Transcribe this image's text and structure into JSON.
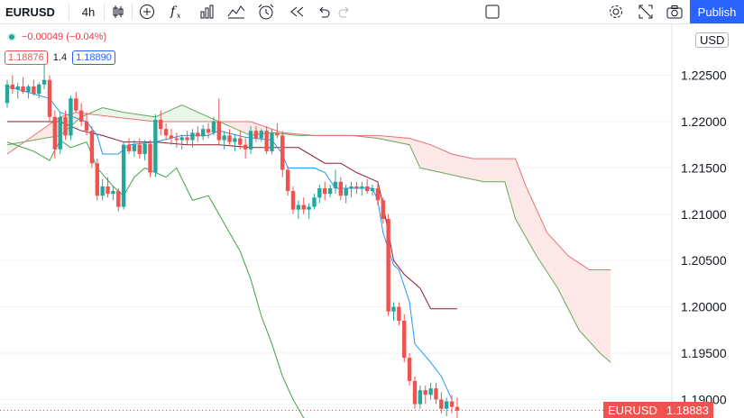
{
  "toolbar": {
    "symbol": "EURUSD",
    "interval": "4h",
    "publish": "Publish",
    "icons": [
      "candles-icon",
      "add-indicator-icon",
      "fx-indicators-icon",
      "bar-chart-icon",
      "compare-icon",
      "alert-icon",
      "replay-icon",
      "undo-icon",
      "redo-icon",
      "layout-icon",
      "settings-icon",
      "fullscreen-icon",
      "camera-icon"
    ]
  },
  "legend": {
    "change": "−0.00049 (−0.04%)",
    "ichimoku_a": "1.18876",
    "ichimoku_mid": "1.4",
    "ichimoku_b": "1.18890"
  },
  "axis": {
    "currency": "USD",
    "last_symbol": "EURUSD",
    "last_price": "1.18883"
  },
  "colors": {
    "up": "#26a69a",
    "down": "#ef5350",
    "tenkan": "#2196f3",
    "kijun": "#8b1e2d",
    "chikou": "#43a047",
    "span_a": "#66a85a",
    "span_b": "#e57373",
    "cloud_bear": "#fde7e7",
    "cloud_bull": "#e8f5e9"
  },
  "chart_data": {
    "type": "line",
    "yticks": [
      1.19,
      1.195,
      1.2,
      1.205,
      1.21,
      1.215,
      1.22,
      1.225
    ],
    "ytick_labels": [
      "1.19000",
      "1.19500",
      "1.20000",
      "1.20500",
      "1.21000",
      "1.21500",
      "1.22000",
      "1.22500"
    ],
    "ylim": [
      1.188,
      1.2305
    ],
    "candles": [
      [
        1.222,
        1.2245,
        1.2215,
        1.224
      ],
      [
        1.224,
        1.225,
        1.223,
        1.2235
      ],
      [
        1.2235,
        1.2242,
        1.2225,
        1.2238
      ],
      [
        1.2238,
        1.2248,
        1.223,
        1.2232
      ],
      [
        1.2232,
        1.224,
        1.2225,
        1.2238
      ],
      [
        1.2238,
        1.2245,
        1.2228,
        1.223
      ],
      [
        1.223,
        1.2242,
        1.2225,
        1.224
      ],
      [
        1.224,
        1.2262,
        1.2235,
        1.2245
      ],
      [
        1.2245,
        1.225,
        1.22,
        1.2205
      ],
      [
        1.2205,
        1.2212,
        1.216,
        1.217
      ],
      [
        1.217,
        1.221,
        1.2165,
        1.2205
      ],
      [
        1.2205,
        1.2212,
        1.218,
        1.2185
      ],
      [
        1.2185,
        1.2228,
        1.218,
        1.2225
      ],
      [
        1.2225,
        1.2232,
        1.221,
        1.2212
      ],
      [
        1.2212,
        1.222,
        1.2195,
        1.22
      ],
      [
        1.22,
        1.221,
        1.2185,
        1.219
      ],
      [
        1.219,
        1.2195,
        1.215,
        1.2155
      ],
      [
        1.2155,
        1.216,
        1.2115,
        1.212
      ],
      [
        1.212,
        1.2138,
        1.2115,
        1.213
      ],
      [
        1.213,
        1.214,
        1.2118,
        1.2122
      ],
      [
        1.2122,
        1.213,
        1.2115,
        1.2125
      ],
      [
        1.2125,
        1.2128,
        1.2103,
        1.2108
      ],
      [
        1.2108,
        1.2178,
        1.2105,
        1.2175
      ],
      [
        1.2175,
        1.2182,
        1.2165,
        1.2168
      ],
      [
        1.2168,
        1.218,
        1.2162,
        1.2175
      ],
      [
        1.2175,
        1.2182,
        1.216,
        1.2165
      ],
      [
        1.2165,
        1.218,
        1.2158,
        1.2176
      ],
      [
        1.2176,
        1.218,
        1.214,
        1.2145
      ],
      [
        1.2145,
        1.2208,
        1.214,
        1.2202
      ],
      [
        1.2202,
        1.2212,
        1.2185,
        1.2192
      ],
      [
        1.2192,
        1.2198,
        1.218,
        1.2185
      ],
      [
        1.2185,
        1.2192,
        1.2175,
        1.2182
      ],
      [
        1.2182,
        1.2188,
        1.2172,
        1.218
      ],
      [
        1.218,
        1.2186,
        1.217,
        1.2183
      ],
      [
        1.2183,
        1.219,
        1.2175,
        1.218
      ],
      [
        1.218,
        1.2192,
        1.2172,
        1.2188
      ],
      [
        1.2188,
        1.2195,
        1.2178,
        1.2184
      ],
      [
        1.2184,
        1.2196,
        1.218,
        1.2192
      ],
      [
        1.2192,
        1.2198,
        1.2182,
        1.2188
      ],
      [
        1.2188,
        1.2205,
        1.2185,
        1.22
      ],
      [
        1.22,
        1.2225,
        1.2175,
        1.218
      ],
      [
        1.218,
        1.219,
        1.217,
        1.2185
      ],
      [
        1.2185,
        1.2192,
        1.2175,
        1.2178
      ],
      [
        1.2178,
        1.2186,
        1.2168,
        1.2182
      ],
      [
        1.2182,
        1.219,
        1.217,
        1.2175
      ],
      [
        1.2175,
        1.2182,
        1.216,
        1.217
      ],
      [
        1.217,
        1.2195,
        1.2165,
        1.219
      ],
      [
        1.219,
        1.2195,
        1.2178,
        1.2182
      ],
      [
        1.2182,
        1.2192,
        1.2178,
        1.219
      ],
      [
        1.219,
        1.2195,
        1.2165,
        1.2168
      ],
      [
        1.2168,
        1.2192,
        1.2165,
        1.2188
      ],
      [
        1.2188,
        1.2198,
        1.2182,
        1.2185
      ],
      [
        1.2185,
        1.219,
        1.214,
        1.2148
      ],
      [
        1.2148,
        1.2152,
        1.212,
        1.2125
      ],
      [
        1.2125,
        1.213,
        1.21,
        1.2105
      ],
      [
        1.2105,
        1.2115,
        1.2095,
        1.211
      ],
      [
        1.211,
        1.2118,
        1.21,
        1.2105
      ],
      [
        1.2105,
        1.2112,
        1.2095,
        1.2108
      ],
      [
        1.2108,
        1.2122,
        1.2105,
        1.2118
      ],
      [
        1.2118,
        1.2132,
        1.2112,
        1.2128
      ],
      [
        1.2128,
        1.2135,
        1.2115,
        1.2122
      ],
      [
        1.2122,
        1.2132,
        1.2118,
        1.2128
      ],
      [
        1.2128,
        1.2148,
        1.2122,
        1.2135
      ],
      [
        1.2135,
        1.214,
        1.2115,
        1.212
      ],
      [
        1.212,
        1.2132,
        1.2112,
        1.2128
      ],
      [
        1.2128,
        1.2135,
        1.2118,
        1.213
      ],
      [
        1.213,
        1.2135,
        1.2122,
        1.2128
      ],
      [
        1.2128,
        1.2135,
        1.212,
        1.213
      ],
      [
        1.213,
        1.2138,
        1.2122,
        1.2125
      ],
      [
        1.2125,
        1.2132,
        1.212,
        1.2128
      ],
      [
        1.2128,
        1.2132,
        1.211,
        1.2115
      ],
      [
        1.2115,
        1.2118,
        1.209,
        1.2095
      ],
      [
        1.2095,
        1.21,
        1.199,
        1.1995
      ],
      [
        1.1995,
        1.2005,
        1.1985,
        1.2
      ],
      [
        1.2,
        1.2005,
        1.198,
        1.1985
      ],
      [
        1.1985,
        1.1992,
        1.194,
        1.1945
      ],
      [
        1.1945,
        1.195,
        1.1915,
        1.192
      ],
      [
        1.192,
        1.1925,
        1.189,
        1.1895
      ],
      [
        1.1895,
        1.1915,
        1.189,
        1.191
      ],
      [
        1.191,
        1.1915,
        1.1895,
        1.1905
      ],
      [
        1.1905,
        1.1918,
        1.19,
        1.1912
      ],
      [
        1.1912,
        1.1918,
        1.1895,
        1.19
      ],
      [
        1.19,
        1.1908,
        1.1885,
        1.189
      ],
      [
        1.189,
        1.1902,
        1.1882,
        1.1898
      ],
      [
        1.1898,
        1.1905,
        1.1885,
        1.1892
      ],
      [
        1.1892,
        1.1902,
        1.188,
        1.1888
      ]
    ],
    "tenkan": [
      [
        0,
        1.2238
      ],
      [
        8,
        1.2225
      ],
      [
        10,
        1.221
      ],
      [
        15,
        1.22
      ],
      [
        17,
        1.2185
      ],
      [
        18,
        1.2165
      ],
      [
        21,
        1.2165
      ],
      [
        23,
        1.2175
      ],
      [
        28,
        1.2178
      ],
      [
        33,
        1.2185
      ],
      [
        38,
        1.2185
      ],
      [
        40,
        1.219
      ],
      [
        45,
        1.2183
      ],
      [
        50,
        1.218
      ],
      [
        52,
        1.2165
      ],
      [
        53,
        1.215
      ],
      [
        55,
        1.215
      ],
      [
        58,
        1.215
      ],
      [
        60,
        1.2145
      ],
      [
        62,
        1.2128
      ],
      [
        66,
        1.2128
      ],
      [
        69,
        1.2128
      ],
      [
        70,
        1.2115
      ],
      [
        71,
        1.208
      ],
      [
        73,
        1.2045
      ],
      [
        74,
        1.204
      ],
      [
        76,
        1.2005
      ],
      [
        77,
        1.196
      ],
      [
        80,
        1.194
      ],
      [
        82,
        1.1925
      ],
      [
        84,
        1.19
      ]
    ],
    "kijun": [
      [
        0,
        1.22
      ],
      [
        10,
        1.22
      ],
      [
        14,
        1.219
      ],
      [
        18,
        1.2185
      ],
      [
        22,
        1.2178
      ],
      [
        28,
        1.2178
      ],
      [
        34,
        1.2175
      ],
      [
        40,
        1.2175
      ],
      [
        46,
        1.2172
      ],
      [
        52,
        1.2172
      ],
      [
        55,
        1.2172
      ],
      [
        60,
        1.2155
      ],
      [
        63,
        1.2155
      ],
      [
        66,
        1.2145
      ],
      [
        68,
        1.214
      ],
      [
        70,
        1.2135
      ],
      [
        71,
        1.211
      ],
      [
        73,
        1.205
      ],
      [
        75,
        1.2035
      ],
      [
        78,
        1.202
      ],
      [
        80,
        1.1998
      ],
      [
        85,
        1.1998
      ]
    ],
    "chikou": [
      [
        0,
        1.2178
      ],
      [
        5,
        1.2168
      ],
      [
        8,
        1.2158
      ],
      [
        10,
        1.218
      ],
      [
        12,
        1.2172
      ],
      [
        15,
        1.2178
      ],
      [
        17,
        1.215
      ],
      [
        20,
        1.213
      ],
      [
        22,
        1.212
      ],
      [
        24,
        1.214
      ],
      [
        26,
        1.215
      ],
      [
        28,
        1.2145
      ],
      [
        30,
        1.214
      ],
      [
        32,
        1.215
      ],
      [
        35,
        1.2115
      ],
      [
        38,
        1.212
      ],
      [
        40,
        1.21
      ],
      [
        42,
        1.208
      ],
      [
        44,
        1.206
      ],
      [
        46,
        1.203
      ],
      [
        48,
        1.199
      ],
      [
        50,
        1.196
      ],
      [
        52,
        1.1925
      ],
      [
        54,
        1.19
      ],
      [
        56,
        1.188
      ]
    ],
    "span_a": [
      [
        0,
        1.2175
      ],
      [
        5,
        1.218
      ],
      [
        10,
        1.2185
      ],
      [
        14,
        1.2205
      ],
      [
        18,
        1.2215
      ],
      [
        22,
        1.221
      ],
      [
        28,
        1.2205
      ],
      [
        33,
        1.2218
      ],
      [
        38,
        1.2205
      ],
      [
        42,
        1.2195
      ],
      [
        46,
        1.2185
      ],
      [
        50,
        1.2188
      ],
      [
        55,
        1.2185
      ],
      [
        60,
        1.2185
      ],
      [
        65,
        1.2185
      ],
      [
        70,
        1.2182
      ],
      [
        76,
        1.2175
      ],
      [
        78,
        1.215
      ],
      [
        82,
        1.2145
      ],
      [
        86,
        1.214
      ],
      [
        90,
        1.2135
      ],
      [
        94,
        1.2135
      ],
      [
        96,
        1.2095
      ],
      [
        100,
        1.2055
      ],
      [
        104,
        1.202
      ],
      [
        108,
        1.1975
      ],
      [
        112,
        1.195
      ],
      [
        114,
        1.194
      ]
    ],
    "span_b": [
      [
        0,
        1.2165
      ],
      [
        5,
        1.2185
      ],
      [
        10,
        1.2205
      ],
      [
        13,
        1.221
      ],
      [
        20,
        1.2205
      ],
      [
        28,
        1.22
      ],
      [
        34,
        1.22
      ],
      [
        40,
        1.22
      ],
      [
        46,
        1.22
      ],
      [
        52,
        1.2188
      ],
      [
        58,
        1.2185
      ],
      [
        64,
        1.2185
      ],
      [
        70,
        1.2185
      ],
      [
        76,
        1.2182
      ],
      [
        80,
        1.2175
      ],
      [
        84,
        1.2165
      ],
      [
        88,
        1.216
      ],
      [
        92,
        1.216
      ],
      [
        96,
        1.216
      ],
      [
        98,
        1.213
      ],
      [
        102,
        1.208
      ],
      [
        106,
        1.2055
      ],
      [
        110,
        1.204
      ],
      [
        114,
        1.204
      ]
    ],
    "last_price": 1.18883
  }
}
